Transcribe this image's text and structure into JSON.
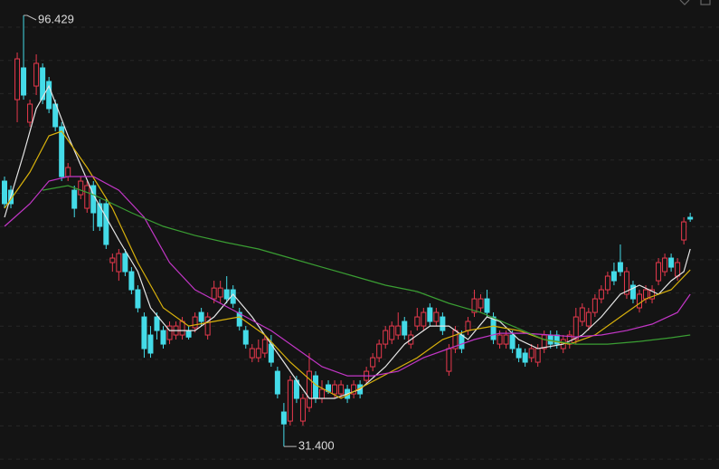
{
  "chart_data": {
    "type": "candlestick",
    "ylim": [
      28,
      98.75
    ],
    "up_color": "#e8394d",
    "down_color": "#44dbe8",
    "background": "#141414",
    "ohlc": [
      [
        71.43,
        72.11,
        67.33,
        68.02
      ],
      [
        70.06,
        70.75,
        67.33,
        68.02
      ],
      [
        83.72,
        90.83,
        80.31,
        89.87
      ],
      [
        88.51,
        96.429,
        83.72,
        84.41
      ],
      [
        80.31,
        83.72,
        79.63,
        83.04
      ],
      [
        85.77,
        90.55,
        84.41,
        89.19
      ],
      [
        88.51,
        89.19,
        83.04,
        83.72
      ],
      [
        86.46,
        87.14,
        81.68,
        82.36
      ],
      [
        83.04,
        83.72,
        78.94,
        79.63
      ],
      [
        79.63,
        80.31,
        71.43,
        72.11
      ],
      [
        72.11,
        74.16,
        71.43,
        73.48
      ],
      [
        70.06,
        70.75,
        65.97,
        67.33
      ],
      [
        69.38,
        72.11,
        68.7,
        71.43
      ],
      [
        67.33,
        71.43,
        66.65,
        70.75
      ],
      [
        70.75,
        71.43,
        63.92,
        66.65
      ],
      [
        68.02,
        68.7,
        63.92,
        64.6
      ],
      [
        68.02,
        68.7,
        61.19,
        61.87
      ],
      [
        59.14,
        60.5,
        57.77,
        59.82
      ],
      [
        57.77,
        61.19,
        56.4,
        60.5
      ],
      [
        60.5,
        61.19,
        57.09,
        57.77
      ],
      [
        57.77,
        58.45,
        54.36,
        55.04
      ],
      [
        55.04,
        55.72,
        51.62,
        52.31
      ],
      [
        50.94,
        51.62,
        44.79,
        46.16
      ],
      [
        48.21,
        49.57,
        44.79,
        45.48
      ],
      [
        50.94,
        51.62,
        47.53,
        48.89
      ],
      [
        48.89,
        49.57,
        46.16,
        46.84
      ],
      [
        47.53,
        50.26,
        46.84,
        49.57
      ],
      [
        48.21,
        50.26,
        47.53,
        49.57
      ],
      [
        48.21,
        50.94,
        47.53,
        50.26
      ],
      [
        48.89,
        49.57,
        47.53,
        47.9
      ],
      [
        49.3,
        51.62,
        48.6,
        50.94
      ],
      [
        51.62,
        52.31,
        49.57,
        50.26
      ],
      [
        48.21,
        51.62,
        47.53,
        50.94
      ],
      [
        53.67,
        56.4,
        52.99,
        55.3
      ],
      [
        53.95,
        56.4,
        52.99,
        55.3
      ],
      [
        55.04,
        57.09,
        52.99,
        53.67
      ],
      [
        55.04,
        55.72,
        52.31,
        52.99
      ],
      [
        51.62,
        52.31,
        48.89,
        49.57
      ],
      [
        48.89,
        49.57,
        46.16,
        46.84
      ],
      [
        44.79,
        46.84,
        44.11,
        46.16
      ],
      [
        44.79,
        47.53,
        44.11,
        46.16
      ],
      [
        45.48,
        48.21,
        44.79,
        47.53
      ],
      [
        46.84,
        48.21,
        43.43,
        44.11
      ],
      [
        42.74,
        43.43,
        38.65,
        39.33
      ],
      [
        36.6,
        37.96,
        31.4,
        34.8
      ],
      [
        35.23,
        42.06,
        34.55,
        41.38
      ],
      [
        41.38,
        42.06,
        37.96,
        38.65
      ],
      [
        35.23,
        39.33,
        34.55,
        38.65
      ],
      [
        37.28,
        45.48,
        36.6,
        42.74
      ],
      [
        42.06,
        42.74,
        37.96,
        38.65
      ],
      [
        38.65,
        41.38,
        37.96,
        40.01
      ],
      [
        40.7,
        41.38,
        39.33,
        39.7
      ],
      [
        39.33,
        41.38,
        38.65,
        40.7
      ],
      [
        39.33,
        41.38,
        38.65,
        40.7
      ],
      [
        40.01,
        40.7,
        37.96,
        38.65
      ],
      [
        39.33,
        41.38,
        38.65,
        40.7
      ],
      [
        40.7,
        41.38,
        38.65,
        39.33
      ],
      [
        41.38,
        43.43,
        40.7,
        42.74
      ],
      [
        43.43,
        45.48,
        42.74,
        44.79
      ],
      [
        44.79,
        47.53,
        44.11,
        46.84
      ],
      [
        46.84,
        49.57,
        46.16,
        48.89
      ],
      [
        47.53,
        50.26,
        46.84,
        49.57
      ],
      [
        48.21,
        51.62,
        47.53,
        49.57
      ],
      [
        50.26,
        50.94,
        47.53,
        48.21
      ],
      [
        46.84,
        48.89,
        46.16,
        48.21
      ],
      [
        49.57,
        52.31,
        48.89,
        50.94
      ],
      [
        49.57,
        52.31,
        48.89,
        51.62
      ],
      [
        52.31,
        52.99,
        49.57,
        50.26
      ],
      [
        50.26,
        52.31,
        49.57,
        51.62
      ],
      [
        50.94,
        51.62,
        48.21,
        48.89
      ],
      [
        42.74,
        46.84,
        42.06,
        46.16
      ],
      [
        46.16,
        49.57,
        45.48,
        48.89
      ],
      [
        48.21,
        48.89,
        45.48,
        46.16
      ],
      [
        48.89,
        50.94,
        48.21,
        50.26
      ],
      [
        51.62,
        55.04,
        50.94,
        53.67
      ],
      [
        52.31,
        54.36,
        51.62,
        53.67
      ],
      [
        53.67,
        55.04,
        50.94,
        51.62
      ],
      [
        50.94,
        51.62,
        46.84,
        47.53
      ],
      [
        46.84,
        48.89,
        46.16,
        48.21
      ],
      [
        46.84,
        48.89,
        46.16,
        48.21
      ],
      [
        48.21,
        48.89,
        45.48,
        46.16
      ],
      [
        46.16,
        46.84,
        44.11,
        44.79
      ],
      [
        45.48,
        46.16,
        43.43,
        44.11
      ],
      [
        44.79,
        46.84,
        44.11,
        46.16
      ],
      [
        44.11,
        46.84,
        43.43,
        46.16
      ],
      [
        46.16,
        48.89,
        45.48,
        48.21
      ],
      [
        48.21,
        48.89,
        46.16,
        46.84
      ],
      [
        48.21,
        48.89,
        46.16,
        46.84
      ],
      [
        46.16,
        48.21,
        45.48,
        47.53
      ],
      [
        46.84,
        48.89,
        46.16,
        48.21
      ],
      [
        47.53,
        52.31,
        46.84,
        50.94
      ],
      [
        50.26,
        52.99,
        49.57,
        52.31
      ],
      [
        49.57,
        52.31,
        48.89,
        51.62
      ],
      [
        51.62,
        54.36,
        50.94,
        53.67
      ],
      [
        53.67,
        55.72,
        52.99,
        55.04
      ],
      [
        55.04,
        57.77,
        54.36,
        57.09
      ],
      [
        57.77,
        59.14,
        55.72,
        56.4
      ],
      [
        59.14,
        61.87,
        57.09,
        57.77
      ],
      [
        54.36,
        58.45,
        53.67,
        57.77
      ],
      [
        55.72,
        56.4,
        52.99,
        53.67
      ],
      [
        52.31,
        55.04,
        51.62,
        54.36
      ],
      [
        53.67,
        55.72,
        52.99,
        55.04
      ],
      [
        53.67,
        55.72,
        52.99,
        55.04
      ],
      [
        56.4,
        59.82,
        55.72,
        59.14
      ],
      [
        57.77,
        60.5,
        57.09,
        59.82
      ],
      [
        59.82,
        60.5,
        57.77,
        58.45
      ],
      [
        57.09,
        59.82,
        56.4,
        59.14
      ],
      [
        62.55,
        65.97,
        61.87,
        65.28
      ],
      [
        65.97,
        66.65,
        65.28,
        65.7
      ]
    ],
    "series": [
      {
        "color": "#e6e6e6",
        "x": [
          0,
          3,
          5,
          7,
          10,
          14,
          18,
          21,
          23,
          26,
          30,
          33,
          36,
          39,
          42,
          44,
          46,
          48,
          52,
          56,
          60,
          63,
          67,
          70,
          73,
          76,
          78,
          81,
          84,
          88,
          91,
          94,
          97,
          100,
          103,
          105,
          107,
          108
        ],
        "values": [
          65.97,
          75.53,
          82.36,
          85.77,
          78.26,
          69.38,
          62.55,
          57.77,
          52.31,
          48.89,
          48.89,
          50.94,
          54.36,
          50.94,
          46.84,
          44.11,
          41.38,
          38.65,
          38.65,
          40.01,
          43.43,
          46.84,
          49.57,
          49.57,
          47.53,
          50.94,
          50.26,
          47.53,
          46.16,
          46.84,
          48.21,
          50.94,
          54.36,
          55.72,
          54.36,
          56.4,
          57.77,
          61.19
        ]
      },
      {
        "color": "#d8b10c",
        "x": [
          0,
          4,
          7,
          9,
          13,
          17,
          21,
          25,
          29,
          33,
          37,
          41,
          45,
          49,
          53,
          57,
          61,
          65,
          69,
          73,
          77,
          81,
          85,
          89,
          93,
          97,
          101,
          105,
          108
        ],
        "values": [
          67.33,
          72.8,
          78.26,
          78.94,
          73.48,
          67.33,
          59.14,
          52.31,
          49.57,
          50.26,
          50.94,
          48.21,
          44.11,
          40.7,
          38.65,
          40.7,
          42.74,
          44.79,
          47.53,
          48.89,
          49.57,
          48.89,
          47.53,
          46.84,
          48.21,
          50.94,
          53.67,
          55.04,
          58.04
        ]
      },
      {
        "color": "#c236c6",
        "x": [
          0,
          4,
          7,
          10,
          14,
          18,
          22,
          26,
          30,
          34,
          38,
          42,
          46,
          50,
          54,
          58,
          62,
          66,
          70,
          74,
          78,
          82,
          86,
          90,
          94,
          98,
          102,
          106,
          108
        ],
        "values": [
          64.6,
          68.02,
          71.43,
          72.11,
          72.11,
          70.06,
          65.97,
          59.14,
          55.04,
          52.99,
          50.94,
          48.89,
          46.16,
          43.43,
          42.06,
          42.06,
          42.74,
          44.79,
          46.16,
          47.53,
          48.48,
          48.48,
          48.21,
          47.93,
          48.21,
          48.89,
          49.85,
          51.62,
          54.36
        ]
      },
      {
        "color": "#3a9e33",
        "x": [
          6,
          10,
          14,
          20,
          25,
          30,
          35,
          40,
          45,
          50,
          55,
          60,
          65,
          70,
          75,
          80,
          85,
          90,
          95,
          100,
          105,
          108
        ],
        "values": [
          70.06,
          70.75,
          69.38,
          66.65,
          64.6,
          63.23,
          62.14,
          61.19,
          59.82,
          58.45,
          57.09,
          55.72,
          54.77,
          52.99,
          51.62,
          49.57,
          47.53,
          46.84,
          46.84,
          47.25,
          47.8,
          48.21
        ]
      }
    ],
    "annotations": [
      {
        "value": 96.429,
        "label": "96.429"
      },
      {
        "value": 31.4,
        "label": "31.400"
      }
    ]
  }
}
